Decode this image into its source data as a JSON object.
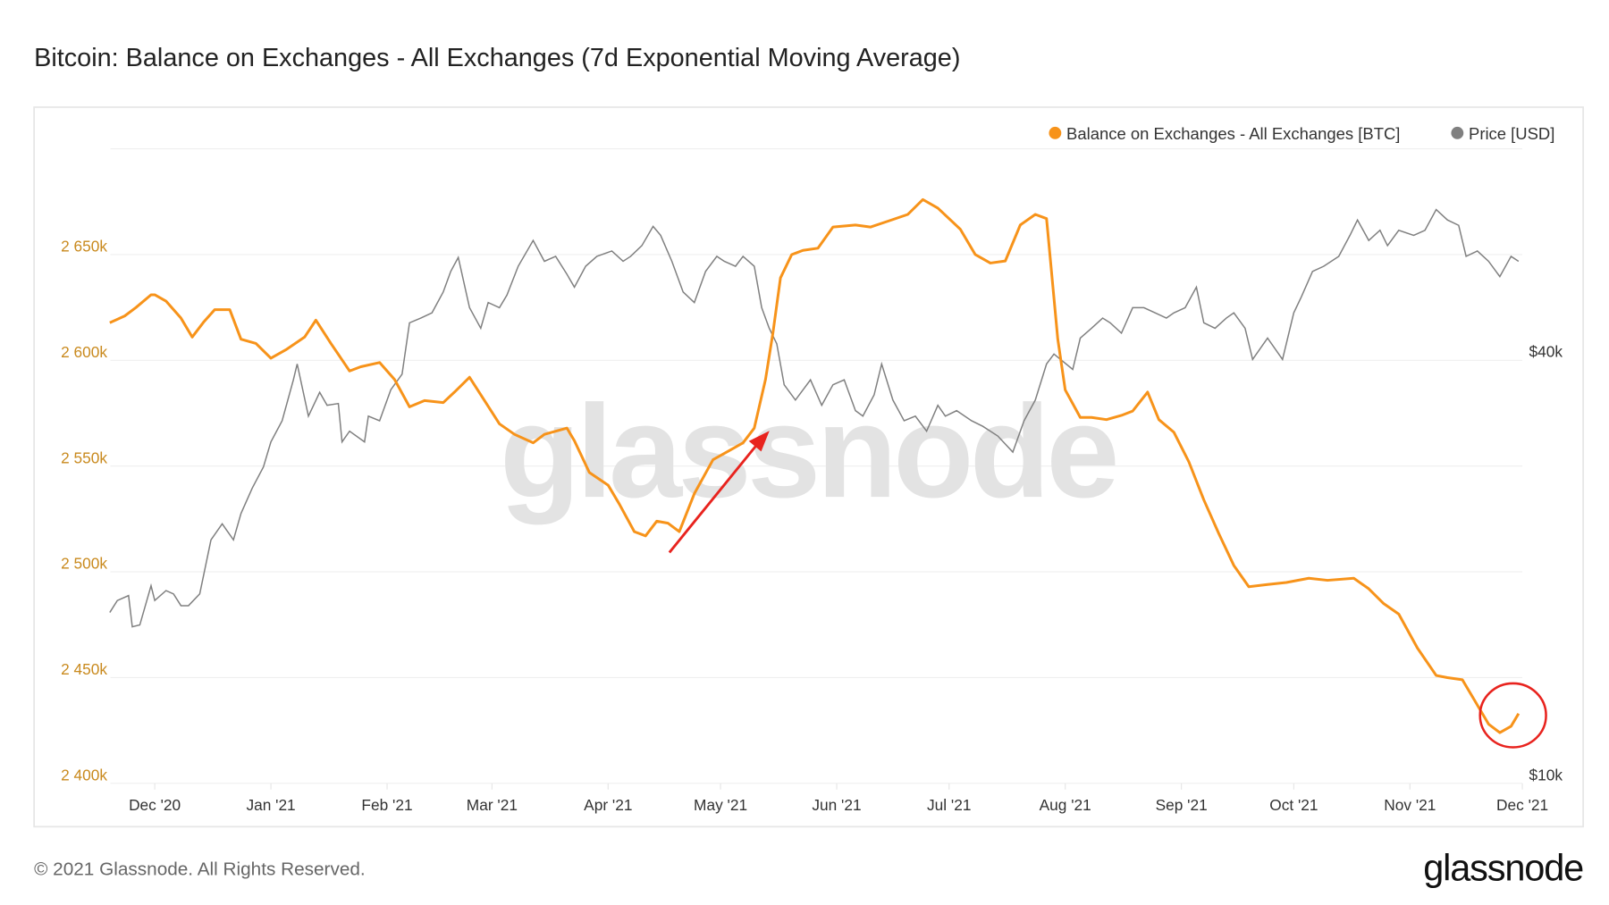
{
  "title": "Bitcoin: Balance on Exchanges - All Exchanges (7d Exponential Moving Average)",
  "footer": {
    "copyright": "© 2021 Glassnode. All Rights Reserved.",
    "logo": "glassnode"
  },
  "watermark": "glassnode",
  "colors": {
    "balance": "#f7931a",
    "price": "#808080",
    "annotation": "#e8231e",
    "left_axis_text": "#c98a1e"
  },
  "chart_data": {
    "type": "line",
    "title": "Bitcoin: Balance on Exchanges - All Exchanges (7d Exponential Moving Average)",
    "legend_position": "top-right",
    "grid": true,
    "x_ticks": [
      "Dec '20",
      "Jan '21",
      "Feb '21",
      "Mar '21",
      "Apr '21",
      "May '21",
      "Jun '21",
      "Jul '21",
      "Aug '21",
      "Sep '21",
      "Oct '21",
      "Nov '21",
      "Dec '21"
    ],
    "x_tick_dates": [
      "2020-12-01",
      "2021-01-01",
      "2021-02-01",
      "2021-03-01",
      "2021-04-01",
      "2021-05-01",
      "2021-06-01",
      "2021-07-01",
      "2021-08-01",
      "2021-09-01",
      "2021-10-01",
      "2021-11-01",
      "2021-12-01"
    ],
    "xlim": [
      "2020-11-19",
      "2021-12-01"
    ],
    "y_left": {
      "ticks": [
        "2 400k",
        "2 450k",
        "2 500k",
        "2 550k",
        "2 600k",
        "2 650k"
      ],
      "tick_values": [
        2400,
        2450,
        2500,
        2550,
        2600,
        2650
      ],
      "ylim": [
        2400,
        2700
      ],
      "unit": "k BTC"
    },
    "y_right": {
      "scale": "log",
      "ticks": [
        "$10k",
        "$40k"
      ],
      "tick_values": [
        10000,
        40000
      ]
    },
    "series": [
      {
        "name": "Balance on Exchanges - All Exchanges [BTC]",
        "axis": "left",
        "unit": "k BTC",
        "points": [
          [
            "2020-11-19",
            2617.8
          ],
          [
            "2020-11-23",
            2621
          ],
          [
            "2020-11-26",
            2625
          ],
          [
            "2020-11-30",
            2631
          ],
          [
            "2020-12-01",
            2631
          ],
          [
            "2020-12-04",
            2628
          ],
          [
            "2020-12-08",
            2620
          ],
          [
            "2020-12-11",
            2611
          ],
          [
            "2020-12-14",
            2618
          ],
          [
            "2020-12-17",
            2624
          ],
          [
            "2020-12-21",
            2624
          ],
          [
            "2020-12-24",
            2610
          ],
          [
            "2020-12-28",
            2608
          ],
          [
            "2021-01-01",
            2601
          ],
          [
            "2021-01-05",
            2605
          ],
          [
            "2021-01-10",
            2611
          ],
          [
            "2021-01-13",
            2619
          ],
          [
            "2021-01-17",
            2608
          ],
          [
            "2021-01-22",
            2595
          ],
          [
            "2021-01-25",
            2597
          ],
          [
            "2021-01-30",
            2599
          ],
          [
            "2021-02-03",
            2591
          ],
          [
            "2021-02-07",
            2578
          ],
          [
            "2021-02-11",
            2581
          ],
          [
            "2021-02-16",
            2580
          ],
          [
            "2021-02-19",
            2585
          ],
          [
            "2021-02-23",
            2592
          ],
          [
            "2021-02-27",
            2581
          ],
          [
            "2021-03-03",
            2570
          ],
          [
            "2021-03-07",
            2565
          ],
          [
            "2021-03-12",
            2561
          ],
          [
            "2021-03-15",
            2565
          ],
          [
            "2021-03-21",
            2568
          ],
          [
            "2021-03-23",
            2562
          ],
          [
            "2021-03-27",
            2547
          ],
          [
            "2021-04-01",
            2541
          ],
          [
            "2021-04-04",
            2532
          ],
          [
            "2021-04-08",
            2519
          ],
          [
            "2021-04-11",
            2517
          ],
          [
            "2021-04-14",
            2524
          ],
          [
            "2021-04-17",
            2523
          ],
          [
            "2021-04-20",
            2519
          ],
          [
            "2021-04-24",
            2537
          ],
          [
            "2021-04-29",
            2553
          ],
          [
            "2021-05-04",
            2558
          ],
          [
            "2021-05-07",
            2561
          ],
          [
            "2021-05-10",
            2568
          ],
          [
            "2021-05-13",
            2591
          ],
          [
            "2021-05-15",
            2613
          ],
          [
            "2021-05-17",
            2639
          ],
          [
            "2021-05-20",
            2650
          ],
          [
            "2021-05-23",
            2652
          ],
          [
            "2021-05-27",
            2653
          ],
          [
            "2021-05-31",
            2663
          ],
          [
            "2021-06-06",
            2664
          ],
          [
            "2021-06-10",
            2663
          ],
          [
            "2021-06-15",
            2666
          ],
          [
            "2021-06-20",
            2669
          ],
          [
            "2021-06-24",
            2676
          ],
          [
            "2021-06-28",
            2672
          ],
          [
            "2021-07-04",
            2662
          ],
          [
            "2021-07-08",
            2650
          ],
          [
            "2021-07-12",
            2646
          ],
          [
            "2021-07-16",
            2647
          ],
          [
            "2021-07-20",
            2664
          ],
          [
            "2021-07-24",
            2669
          ],
          [
            "2021-07-27",
            2667
          ],
          [
            "2021-07-30",
            2610
          ],
          [
            "2021-08-01",
            2586
          ],
          [
            "2021-08-05",
            2573
          ],
          [
            "2021-08-08",
            2573
          ],
          [
            "2021-08-12",
            2572
          ],
          [
            "2021-08-16",
            2574
          ],
          [
            "2021-08-19",
            2576
          ],
          [
            "2021-08-23",
            2585
          ],
          [
            "2021-08-26",
            2572
          ],
          [
            "2021-08-30",
            2566
          ],
          [
            "2021-09-03",
            2552
          ],
          [
            "2021-09-07",
            2534
          ],
          [
            "2021-09-11",
            2518
          ],
          [
            "2021-09-15",
            2503
          ],
          [
            "2021-09-19",
            2493
          ],
          [
            "2021-09-24",
            2494
          ],
          [
            "2021-09-29",
            2495
          ],
          [
            "2021-10-05",
            2497
          ],
          [
            "2021-10-10",
            2496
          ],
          [
            "2021-10-17",
            2497
          ],
          [
            "2021-10-21",
            2492
          ],
          [
            "2021-10-25",
            2485
          ],
          [
            "2021-10-29",
            2480
          ],
          [
            "2021-11-03",
            2464
          ],
          [
            "2021-11-08",
            2451
          ],
          [
            "2021-11-11",
            2450
          ],
          [
            "2021-11-15",
            2449
          ],
          [
            "2021-11-18",
            2440
          ],
          [
            "2021-11-22",
            2428
          ],
          [
            "2021-11-25",
            2424
          ],
          [
            "2021-11-28",
            2427
          ],
          [
            "2021-11-30",
            2433
          ]
        ]
      },
      {
        "name": "Price [USD]",
        "axis": "right",
        "unit": "USD",
        "points": [
          [
            "2020-11-19",
            17500
          ],
          [
            "2020-11-21",
            18200
          ],
          [
            "2020-11-24",
            18500
          ],
          [
            "2020-11-25",
            16700
          ],
          [
            "2020-11-27",
            16800
          ],
          [
            "2020-11-30",
            19100
          ],
          [
            "2020-12-01",
            18200
          ],
          [
            "2020-12-04",
            18800
          ],
          [
            "2020-12-06",
            18600
          ],
          [
            "2020-12-08",
            17900
          ],
          [
            "2020-12-10",
            17900
          ],
          [
            "2020-12-13",
            18600
          ],
          [
            "2020-12-16",
            22200
          ],
          [
            "2020-12-19",
            23400
          ],
          [
            "2020-12-22",
            22200
          ],
          [
            "2020-12-24",
            24200
          ],
          [
            "2020-12-27",
            26300
          ],
          [
            "2020-12-30",
            28200
          ],
          [
            "2021-01-01",
            30600
          ],
          [
            "2021-01-04",
            32800
          ],
          [
            "2021-01-07",
            37500
          ],
          [
            "2021-01-08",
            39500
          ],
          [
            "2021-01-11",
            33300
          ],
          [
            "2021-01-14",
            36000
          ],
          [
            "2021-01-16",
            34500
          ],
          [
            "2021-01-19",
            34700
          ],
          [
            "2021-01-20",
            30600
          ],
          [
            "2021-01-22",
            31700
          ],
          [
            "2021-01-26",
            30600
          ],
          [
            "2021-01-27",
            33300
          ],
          [
            "2021-01-30",
            32800
          ],
          [
            "2021-02-02",
            36300
          ],
          [
            "2021-02-05",
            38200
          ],
          [
            "2021-02-07",
            45200
          ],
          [
            "2021-02-10",
            45900
          ],
          [
            "2021-02-13",
            46700
          ],
          [
            "2021-02-16",
            50000
          ],
          [
            "2021-02-18",
            53500
          ],
          [
            "2021-02-20",
            56000
          ],
          [
            "2021-02-23",
            47500
          ],
          [
            "2021-02-26",
            44400
          ],
          [
            "2021-02-28",
            48300
          ],
          [
            "2021-03-03",
            47500
          ],
          [
            "2021-03-05",
            49500
          ],
          [
            "2021-03-08",
            54400
          ],
          [
            "2021-03-12",
            59200
          ],
          [
            "2021-03-15",
            55300
          ],
          [
            "2021-03-18",
            56200
          ],
          [
            "2021-03-21",
            53000
          ],
          [
            "2021-03-23",
            50800
          ],
          [
            "2021-03-26",
            54400
          ],
          [
            "2021-03-29",
            56200
          ],
          [
            "2021-04-02",
            57200
          ],
          [
            "2021-04-05",
            55300
          ],
          [
            "2021-04-07",
            56200
          ],
          [
            "2021-04-10",
            58200
          ],
          [
            "2021-04-13",
            62000
          ],
          [
            "2021-04-15",
            60200
          ],
          [
            "2021-04-18",
            55300
          ],
          [
            "2021-04-21",
            50000
          ],
          [
            "2021-04-24",
            48300
          ],
          [
            "2021-04-27",
            53500
          ],
          [
            "2021-04-30",
            56200
          ],
          [
            "2021-05-02",
            55300
          ],
          [
            "2021-05-05",
            54400
          ],
          [
            "2021-05-07",
            56200
          ],
          [
            "2021-05-10",
            54400
          ],
          [
            "2021-05-12",
            47500
          ],
          [
            "2021-05-14",
            44400
          ],
          [
            "2021-05-16",
            42200
          ],
          [
            "2021-05-18",
            36900
          ],
          [
            "2021-05-21",
            35100
          ],
          [
            "2021-05-25",
            37500
          ],
          [
            "2021-05-28",
            34500
          ],
          [
            "2021-05-31",
            36900
          ],
          [
            "2021-06-03",
            37500
          ],
          [
            "2021-06-06",
            33900
          ],
          [
            "2021-06-08",
            33300
          ],
          [
            "2021-06-11",
            35700
          ],
          [
            "2021-06-13",
            39500
          ],
          [
            "2021-06-16",
            35100
          ],
          [
            "2021-06-19",
            32800
          ],
          [
            "2021-06-22",
            33300
          ],
          [
            "2021-06-25",
            31700
          ],
          [
            "2021-06-28",
            34500
          ],
          [
            "2021-06-30",
            33300
          ],
          [
            "2021-07-03",
            33900
          ],
          [
            "2021-07-07",
            32800
          ],
          [
            "2021-07-10",
            32200
          ],
          [
            "2021-07-14",
            31200
          ],
          [
            "2021-07-18",
            29600
          ],
          [
            "2021-07-21",
            32800
          ],
          [
            "2021-07-24",
            35100
          ],
          [
            "2021-07-27",
            39500
          ],
          [
            "2021-07-29",
            40800
          ],
          [
            "2021-08-03",
            38800
          ],
          [
            "2021-08-05",
            43000
          ],
          [
            "2021-08-08",
            44400
          ],
          [
            "2021-08-11",
            45900
          ],
          [
            "2021-08-13",
            45200
          ],
          [
            "2021-08-16",
            43700
          ],
          [
            "2021-08-19",
            47500
          ],
          [
            "2021-08-22",
            47500
          ],
          [
            "2021-08-25",
            46700
          ],
          [
            "2021-08-28",
            45900
          ],
          [
            "2021-08-30",
            46700
          ],
          [
            "2021-09-02",
            47500
          ],
          [
            "2021-09-05",
            50800
          ],
          [
            "2021-09-07",
            45200
          ],
          [
            "2021-09-10",
            44400
          ],
          [
            "2021-09-13",
            45900
          ],
          [
            "2021-09-15",
            46700
          ],
          [
            "2021-09-18",
            44400
          ],
          [
            "2021-09-20",
            40100
          ],
          [
            "2021-09-24",
            43000
          ],
          [
            "2021-09-28",
            40100
          ],
          [
            "2021-10-01",
            46700
          ],
          [
            "2021-10-03",
            49200
          ],
          [
            "2021-10-06",
            53500
          ],
          [
            "2021-10-09",
            54400
          ],
          [
            "2021-10-13",
            56200
          ],
          [
            "2021-10-16",
            60200
          ],
          [
            "2021-10-18",
            63300
          ],
          [
            "2021-10-21",
            59200
          ],
          [
            "2021-10-24",
            61200
          ],
          [
            "2021-10-26",
            58200
          ],
          [
            "2021-10-29",
            61200
          ],
          [
            "2021-11-02",
            60200
          ],
          [
            "2021-11-05",
            61200
          ],
          [
            "2021-11-08",
            65500
          ],
          [
            "2021-11-11",
            63300
          ],
          [
            "2021-11-14",
            62200
          ],
          [
            "2021-11-16",
            56200
          ],
          [
            "2021-11-19",
            57200
          ],
          [
            "2021-11-22",
            55300
          ],
          [
            "2021-11-25",
            52600
          ],
          [
            "2021-11-28",
            56200
          ],
          [
            "2021-11-30",
            55300
          ]
        ]
      }
    ]
  }
}
